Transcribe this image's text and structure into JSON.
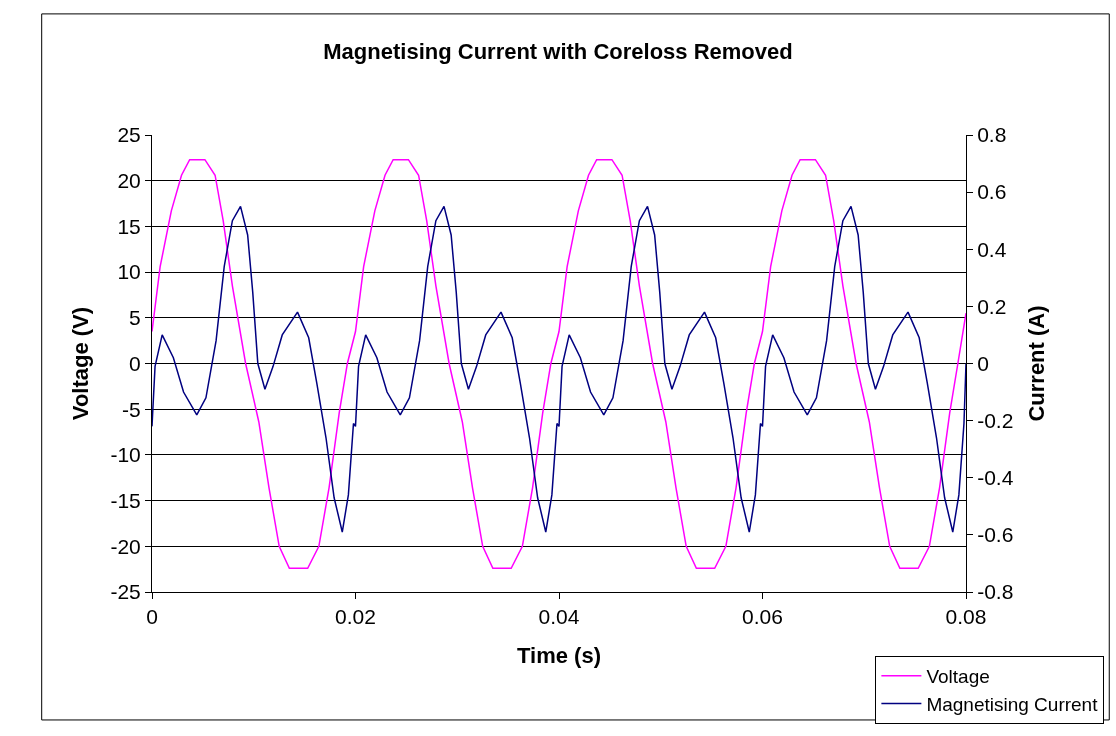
{
  "chart_data": {
    "type": "line",
    "title": "Magnetising Current with Coreloss Removed",
    "xlabel": "Time (s)",
    "ylabel": "Voltage (V)",
    "y2label": "Current (A)",
    "xlim": [
      0,
      0.08
    ],
    "xticks": [
      0,
      0.02,
      0.04,
      0.06,
      0.08
    ],
    "ylim": [
      -25,
      25
    ],
    "yticks": [
      -25,
      -20,
      -15,
      -10,
      -5,
      0,
      5,
      10,
      15,
      20,
      25
    ],
    "y2lim": [
      -0.8,
      0.8
    ],
    "y2ticks": [
      -0.8,
      -0.6,
      -0.4,
      -0.2,
      0,
      0.2,
      0.4,
      0.6,
      0.8
    ],
    "grid": "y",
    "legend": "bottom right",
    "marker": "none",
    "line_style": "solid",
    "series": [
      {
        "name": "Voltage",
        "color": "#ff00ff",
        "x": [
          0,
          0.0008,
          0.0019,
          0.0029,
          0.0037,
          0.0052,
          0.0062,
          0.007,
          0.0079,
          0.0092,
          0.0105,
          0.0115,
          0.0125,
          0.0135,
          0.0153,
          0.0164,
          0.0174,
          0.0184,
          0.0192,
          0.02,
          0.0208,
          0.0219,
          0.0229,
          0.0237,
          0.0252,
          0.0262,
          0.027,
          0.0279,
          0.0292,
          0.0305,
          0.0315,
          0.0325,
          0.0335,
          0.0353,
          0.0364,
          0.0374,
          0.0384,
          0.0392,
          0.04,
          0.0408,
          0.0419,
          0.0429,
          0.0437,
          0.0452,
          0.0462,
          0.047,
          0.0479,
          0.0492,
          0.0505,
          0.0515,
          0.0525,
          0.0535,
          0.0553,
          0.0564,
          0.0574,
          0.0584,
          0.0592,
          0.06,
          0.0608,
          0.0619,
          0.0629,
          0.0637,
          0.0652,
          0.0662,
          0.067,
          0.0679,
          0.0692,
          0.0705,
          0.0715,
          0.0725,
          0.0735,
          0.0753,
          0.0764,
          0.0774,
          0.0784,
          0.0792,
          0.08
        ],
        "values": [
          3.5,
          10.6,
          16.7,
          20.6,
          22.3,
          22.3,
          20.6,
          15.6,
          8.5,
          0,
          -6.4,
          -13.6,
          -20,
          -22.4,
          -22.4,
          -20,
          -13.6,
          -5.4,
          0,
          3.5,
          10.6,
          16.7,
          20.6,
          22.3,
          22.3,
          20.6,
          15.6,
          8.5,
          0,
          -6.4,
          -13.6,
          -20,
          -22.4,
          -22.4,
          -20,
          -13.6,
          -5.4,
          0,
          3.5,
          10.6,
          16.7,
          20.6,
          22.3,
          22.3,
          20.6,
          15.6,
          8.5,
          0,
          -6.4,
          -13.6,
          -20,
          -22.4,
          -22.4,
          -20,
          -13.6,
          -5.4,
          0,
          3.5,
          10.6,
          16.7,
          20.6,
          22.3,
          22.3,
          20.6,
          15.6,
          8.5,
          0,
          -6.4,
          -13.6,
          -20,
          -22.4,
          -22.4,
          -20,
          -13.6,
          -5.4,
          0,
          5.5
        ]
      },
      {
        "name": "Magnetising Current",
        "color": "#000080",
        "axis": "y2",
        "x": [
          0,
          0.0003,
          0.001,
          0.0021,
          0.0031,
          0.0044,
          0.0053,
          0.0063,
          0.0071,
          0.0079,
          0.0087,
          0.0094,
          0.0099,
          0.0104,
          0.0111,
          0.0119,
          0.0128,
          0.0143,
          0.0154,
          0.0162,
          0.0171,
          0.0179,
          0.0187,
          0.0193,
          0.0198,
          0.02,
          0.0203,
          0.021,
          0.0221,
          0.0231,
          0.0244,
          0.0253,
          0.0263,
          0.0271,
          0.0279,
          0.0287,
          0.0294,
          0.0299,
          0.0304,
          0.0311,
          0.0319,
          0.0328,
          0.0343,
          0.0354,
          0.0362,
          0.0371,
          0.0379,
          0.0387,
          0.0393,
          0.0398,
          0.04,
          0.0403,
          0.041,
          0.0421,
          0.0431,
          0.0444,
          0.0453,
          0.0463,
          0.0471,
          0.0479,
          0.0487,
          0.0494,
          0.0499,
          0.0504,
          0.0511,
          0.0519,
          0.0528,
          0.0543,
          0.0554,
          0.0562,
          0.0571,
          0.0579,
          0.0587,
          0.0593,
          0.0598,
          0.06,
          0.0603,
          0.061,
          0.0621,
          0.0631,
          0.0644,
          0.0653,
          0.0663,
          0.0671,
          0.0679,
          0.0687,
          0.0694,
          0.0699,
          0.0704,
          0.0711,
          0.0719,
          0.0728,
          0.0743,
          0.0754,
          0.0762,
          0.0771,
          0.0779,
          0.0787,
          0.0793,
          0.0798,
          0.08
        ],
        "values": [
          -0.22,
          -0.01,
          0.1,
          0.02,
          -0.1,
          -0.18,
          -0.12,
          0.08,
          0.34,
          0.5,
          0.55,
          0.45,
          0.25,
          0,
          -0.09,
          -0.01,
          0.1,
          0.18,
          0.09,
          -0.07,
          -0.26,
          -0.47,
          -0.59,
          -0.46,
          -0.21,
          -0.22,
          -0.01,
          0.1,
          0.02,
          -0.1,
          -0.18,
          -0.12,
          0.08,
          0.34,
          0.5,
          0.55,
          0.45,
          0.25,
          0,
          -0.09,
          -0.01,
          0.1,
          0.18,
          0.09,
          -0.07,
          -0.26,
          -0.47,
          -0.59,
          -0.46,
          -0.21,
          -0.22,
          -0.01,
          0.1,
          0.02,
          -0.1,
          -0.18,
          -0.12,
          0.08,
          0.34,
          0.5,
          0.55,
          0.45,
          0.25,
          0,
          -0.09,
          -0.01,
          0.1,
          0.18,
          0.09,
          -0.07,
          -0.26,
          -0.47,
          -0.59,
          -0.46,
          -0.21,
          -0.22,
          -0.01,
          0.1,
          0.02,
          -0.1,
          -0.18,
          -0.12,
          0.08,
          0.34,
          0.5,
          0.55,
          0.45,
          0.25,
          0,
          -0.09,
          -0.01,
          0.1,
          0.18,
          0.09,
          -0.07,
          -0.26,
          -0.47,
          -0.59,
          -0.46,
          -0.21,
          0
        ]
      }
    ]
  }
}
